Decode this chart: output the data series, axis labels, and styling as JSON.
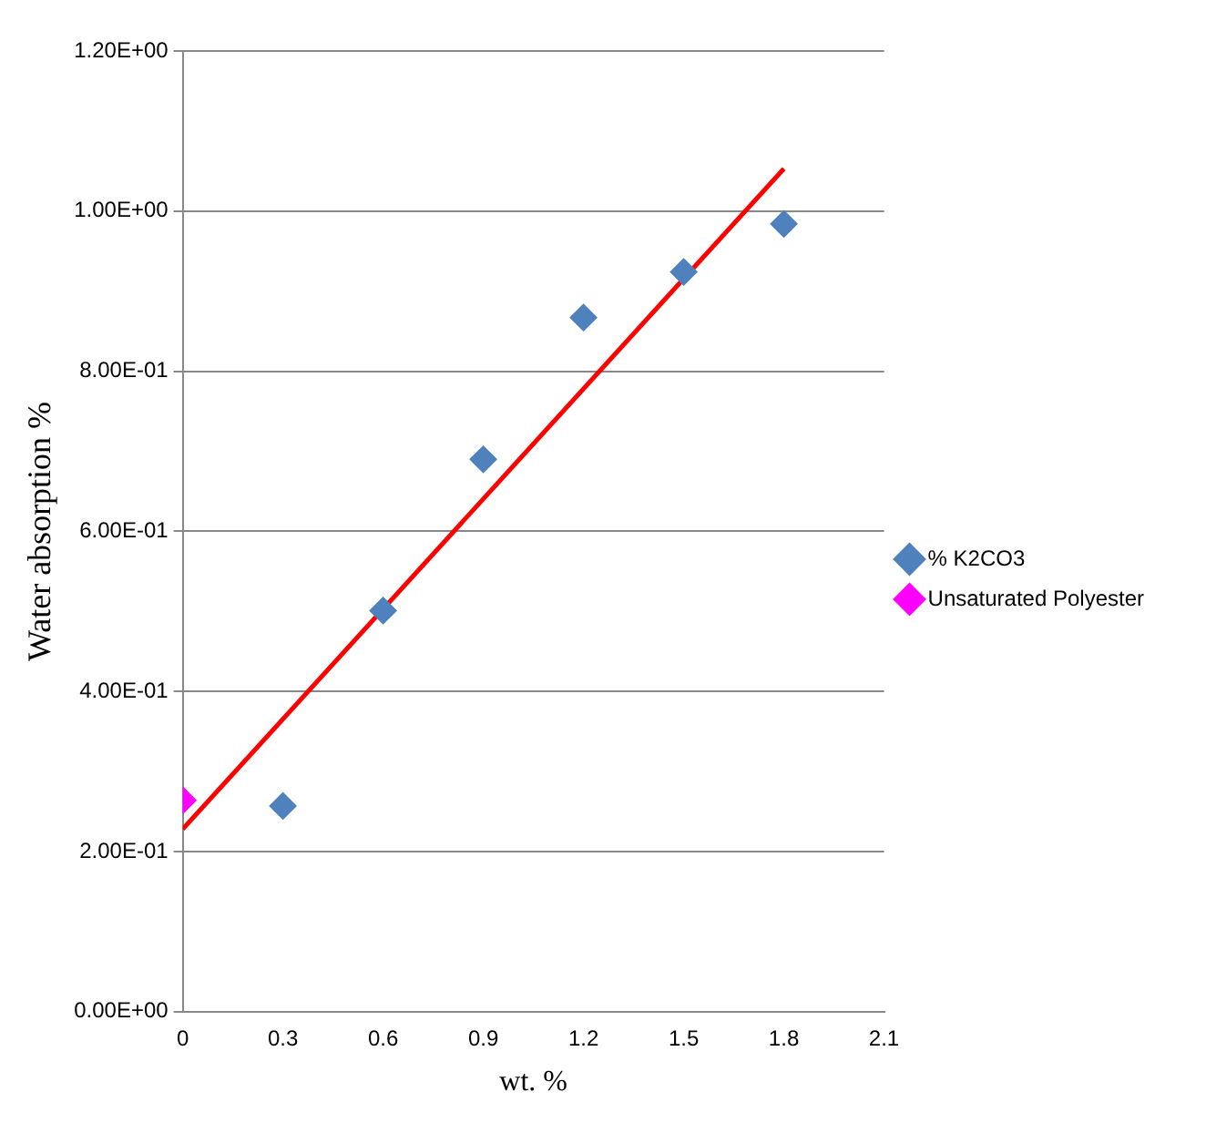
{
  "chart_data": {
    "type": "scatter",
    "xlabel": "wt. %",
    "ylabel": "Water absorption %",
    "xlim": [
      0,
      2.1
    ],
    "xticks": [
      0,
      0.3,
      0.6,
      0.9,
      1.2,
      1.5,
      1.8,
      2.1
    ],
    "ylim": [
      0,
      1.2
    ],
    "yticks": [
      {
        "value": 0,
        "label": "0.00E+00"
      },
      {
        "value": 0.2,
        "label": "2.00E-01"
      },
      {
        "value": 0.4,
        "label": "4.00E-01"
      },
      {
        "value": 0.6,
        "label": "6.00E-01"
      },
      {
        "value": 0.8,
        "label": "8.00E-01"
      },
      {
        "value": 1.0,
        "label": "1.00E+00"
      },
      {
        "value": 1.2,
        "label": "1.20E+00"
      }
    ],
    "grid": "y",
    "legend": "right",
    "marker": "diamond",
    "series": [
      {
        "name": "% K2CO3",
        "color": "#4f81bd",
        "x": [
          0.3,
          0.6,
          0.9,
          1.2,
          1.5,
          1.8
        ],
        "values": [
          0.257,
          0.501,
          0.69,
          0.867,
          0.924,
          0.984
        ]
      },
      {
        "name": "Unsaturated Polyester",
        "color": "#ff00ff",
        "x": [
          0
        ],
        "values": [
          0.264
        ]
      },
      {
        "type": "line",
        "color": "#ff0000",
        "x": [
          0,
          1.8
        ],
        "values": [
          0.228,
          1.053
        ],
        "marker": "none"
      }
    ]
  }
}
